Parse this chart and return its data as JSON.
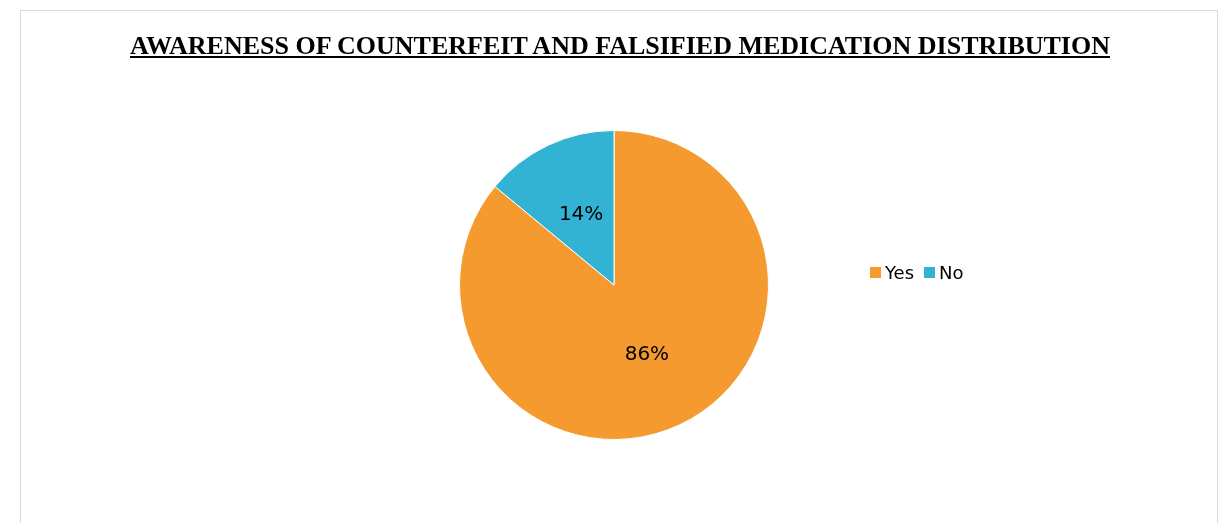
{
  "chart_data": {
    "type": "pie",
    "title": "AWARENESS OF COUNTERFEIT AND FALSIFIED MEDICATION DISTRIBUTION",
    "categories": [
      "Yes",
      "No"
    ],
    "values": [
      86,
      14
    ],
    "value_labels": [
      "86%",
      "14%"
    ],
    "colors": [
      "#f59a2f",
      "#33b3d3"
    ],
    "legend": "right"
  }
}
